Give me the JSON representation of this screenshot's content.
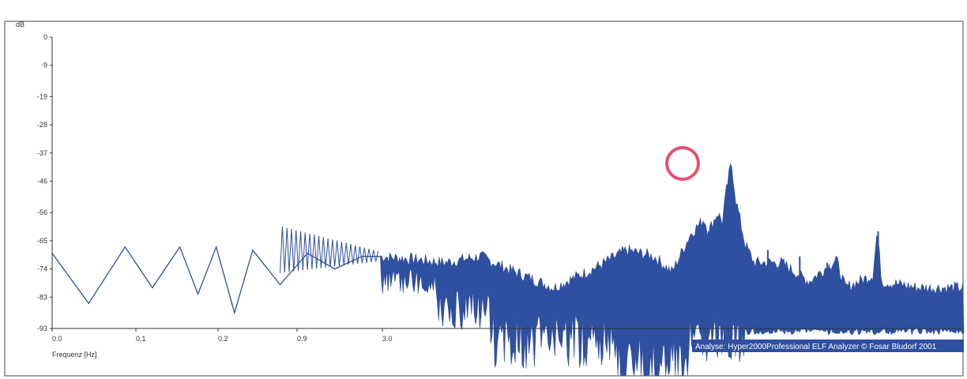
{
  "colors": {
    "background": "#ffffff",
    "frame": "#444444",
    "axis": "#333333",
    "line": "#2f4f9f",
    "fill": "#2f4fa0",
    "highlight": "#e8506a",
    "infobar": "#2f4fa0",
    "infobar_text": "#ffffff"
  },
  "chart_data": {
    "type": "area",
    "title": "",
    "ylabel": "dB",
    "xlabel": "Frequenz [Hz]",
    "y_ticks": [
      "0",
      "-9",
      "-19",
      "-28",
      "-37",
      "-46",
      "-56",
      "-65",
      "-74",
      "-83",
      "-93"
    ],
    "y_tick_values": [
      0,
      -9,
      -19,
      -28,
      -37,
      -46,
      -56,
      -65,
      -74,
      -83,
      -93
    ],
    "x_ticks": [
      "0.0",
      "0.1",
      "0.2",
      "0.9",
      "3.0"
    ],
    "ylim": [
      -93,
      0
    ],
    "grid": false,
    "highlight": {
      "shape": "circle",
      "label": "peak",
      "y_value": -40
    },
    "series": [
      {
        "kind": "line",
        "description_points": [
          [
            0.0,
            -69
          ],
          [
            0.04,
            -85
          ],
          [
            0.08,
            -67
          ],
          [
            0.11,
            -80
          ],
          [
            0.14,
            -67
          ],
          [
            0.16,
            -82
          ],
          [
            0.18,
            -67
          ],
          [
            0.2,
            -88
          ],
          [
            0.22,
            -68
          ],
          [
            0.25,
            -79
          ],
          [
            0.28,
            -69
          ],
          [
            0.31,
            -74
          ],
          [
            0.34,
            -70
          ],
          [
            0.36,
            -70
          ]
        ]
      },
      {
        "kind": "filled",
        "envelope": [
          [
            0.36,
            -70
          ],
          [
            0.4,
            -71
          ],
          [
            0.43,
            -72
          ],
          [
            0.47,
            -70
          ],
          [
            0.5,
            -74
          ],
          [
            0.55,
            -80
          ],
          [
            0.6,
            -73
          ],
          [
            0.63,
            -68
          ],
          [
            0.66,
            -70
          ],
          [
            0.68,
            -75
          ],
          [
            0.7,
            -63
          ],
          [
            0.715,
            -58
          ],
          [
            0.72,
            -62
          ],
          [
            0.73,
            -56
          ],
          [
            0.735,
            -59
          ],
          [
            0.74,
            -48
          ],
          [
            0.745,
            -40
          ],
          [
            0.75,
            -52
          ],
          [
            0.76,
            -66
          ],
          [
            0.77,
            -72
          ],
          [
            0.8,
            -72
          ],
          [
            0.83,
            -78
          ],
          [
            0.86,
            -71
          ],
          [
            0.87,
            -80
          ],
          [
            0.9,
            -76
          ],
          [
            0.905,
            -62
          ],
          [
            0.91,
            -78
          ],
          [
            0.95,
            -80
          ],
          [
            1.0,
            -80
          ]
        ]
      }
    ],
    "annotation": "Analyse: Hyper2000Professional ELF Analyzer © Fosar Bludorf 2001"
  }
}
